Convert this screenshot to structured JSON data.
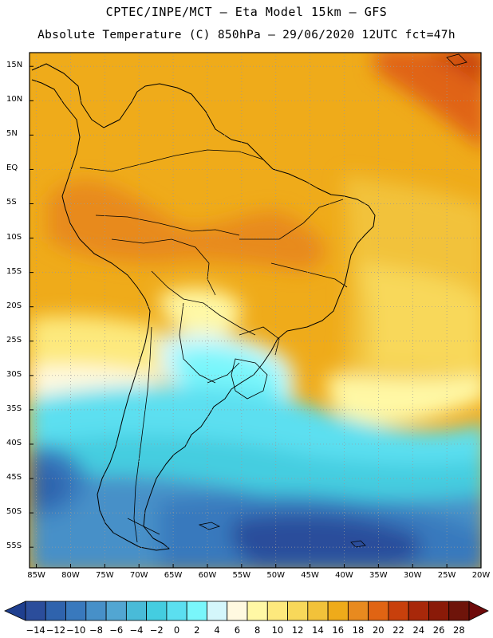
{
  "header": {
    "line1": "CPTEC/INPE/MCT –  Eta Model 15km – GFS",
    "line2": "Absolute Temperature (C) 850hPa – 29/06/2020 12UTC fct=47h"
  },
  "map": {
    "lat_labels": [
      "15N",
      "10N",
      "5N",
      "EQ",
      "5S",
      "10S",
      "15S",
      "20S",
      "25S",
      "30S",
      "35S",
      "40S",
      "45S",
      "50S",
      "55S"
    ],
    "lat_values": [
      15,
      10,
      5,
      0,
      -5,
      -10,
      -15,
      -20,
      -25,
      -30,
      -35,
      -40,
      -45,
      -50,
      -55
    ],
    "lon_labels": [
      "85W",
      "80W",
      "75W",
      "70W",
      "65W",
      "60W",
      "55W",
      "50W",
      "45W",
      "40W",
      "35W",
      "30W",
      "25W",
      "20W"
    ],
    "lon_values": [
      -85,
      -80,
      -75,
      -70,
      -65,
      -60,
      -55,
      -50,
      -45,
      -40,
      -35,
      -30,
      -25,
      -20
    ],
    "extent": {
      "lon_min": -86,
      "lon_max": -20,
      "lat_min": -58,
      "lat_max": 17
    }
  },
  "colorbar": {
    "labels": [
      "-14",
      "-12",
      "-10",
      "-8",
      "-6",
      "-4",
      "-2",
      "0",
      "2",
      "4",
      "6",
      "8",
      "10",
      "12",
      "14",
      "16",
      "18",
      "20",
      "22",
      "24",
      "26",
      "28"
    ],
    "colors": [
      "#2b4d9b",
      "#2f63ad",
      "#3979bd",
      "#4790c8",
      "#52a6d2",
      "#49bbd8",
      "#44cde0",
      "#5bdff0",
      "#79f6fb",
      "#d4f6fb",
      "#fff9e0",
      "#fff8a5",
      "#fde97d",
      "#f8d85a",
      "#f2c23a",
      "#efab1a",
      "#e88a1f",
      "#e06413",
      "#c8400c",
      "#a8280a",
      "#8a1a08",
      "#6e140a"
    ],
    "under_color": "#1f3f8f",
    "over_color": "#6e0a0a"
  }
}
